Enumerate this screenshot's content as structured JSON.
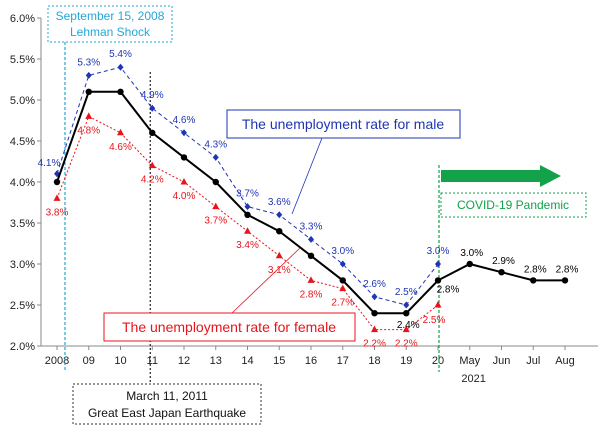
{
  "chart_data": {
    "type": "line",
    "categories": [
      "2008",
      "09",
      "10",
      "11",
      "12",
      "13",
      "14",
      "15",
      "16",
      "17",
      "18",
      "19",
      "20",
      "May",
      "Jun",
      "Jul",
      "Aug"
    ],
    "x_sublabel": "2021",
    "ylim": [
      2.0,
      6.0
    ],
    "yticks": [
      2.0,
      2.5,
      3.0,
      3.5,
      4.0,
      4.5,
      5.0,
      5.5,
      6.0
    ],
    "ytick_labels": [
      "2.0%",
      "2.5%",
      "3.0%",
      "3.5%",
      "4.0%",
      "4.5%",
      "5.0%",
      "5.5%",
      "6.0%"
    ],
    "grid": false,
    "series": [
      {
        "key": "male",
        "values": [
          4.1,
          5.3,
          5.4,
          4.9,
          4.6,
          4.3,
          3.7,
          3.6,
          3.3,
          3.0,
          2.6,
          2.5,
          3.0,
          null,
          null,
          null,
          null
        ],
        "labels": [
          "4.1%",
          "5.3%",
          "5.4%",
          "4.9%",
          "4.6%",
          "4.3%",
          "3.7%",
          "3.6%",
          "3.3%",
          "3.0%",
          "2.6%",
          "2.5%",
          "3.0%",
          "",
          "",
          "",
          ""
        ],
        "color": "#1f35b5",
        "style": "dashed",
        "marker": "diamond"
      },
      {
        "key": "total",
        "values": [
          4.0,
          5.1,
          5.1,
          4.6,
          4.3,
          4.0,
          3.6,
          3.4,
          3.1,
          2.8,
          2.4,
          2.4,
          2.8,
          3.0,
          2.9,
          2.8,
          2.8
        ],
        "labels": [
          "",
          "",
          "",
          "",
          "",
          "",
          "",
          "",
          "",
          "",
          "",
          "2.4%",
          "2.8%",
          "3.0%",
          "2.9%",
          "2.8%",
          "2.8%"
        ],
        "color": "#000000",
        "style": "solid",
        "marker": "circle"
      },
      {
        "key": "female",
        "values": [
          3.8,
          4.8,
          4.6,
          4.2,
          4.0,
          3.7,
          3.4,
          3.1,
          2.8,
          2.7,
          2.2,
          2.2,
          2.5,
          null,
          null,
          null,
          null
        ],
        "labels": [
          "3.8%",
          "4.8%",
          "4.6%",
          "4.2%",
          "4.0%",
          "3.7%",
          "3.4%",
          "3.1%",
          "2.8%",
          "2.7%",
          "2.2%",
          "2.2%",
          "2.5%",
          "",
          "",
          "",
          ""
        ],
        "color": "#e8141b",
        "style": "dotted",
        "marker": "triangle"
      }
    ],
    "annotations": {
      "lehman": {
        "line1": "September 15, 2008",
        "line2": "Lehman Shock",
        "color": "#23a7d6",
        "at": "2008"
      },
      "earthquake": {
        "line1": "March 11, 2011",
        "line2": "Great East Japan Earthquake",
        "color": "#333333",
        "at": "11"
      },
      "covid": {
        "text": "COVID-19 Pandemic",
        "color": "#13a24a",
        "at": "20"
      },
      "male_callout": {
        "text": "The unemployment rate for male",
        "color": "#1f35b5"
      },
      "female_callout": {
        "text": "The unemployment rate for female",
        "color": "#e8141b"
      }
    }
  }
}
